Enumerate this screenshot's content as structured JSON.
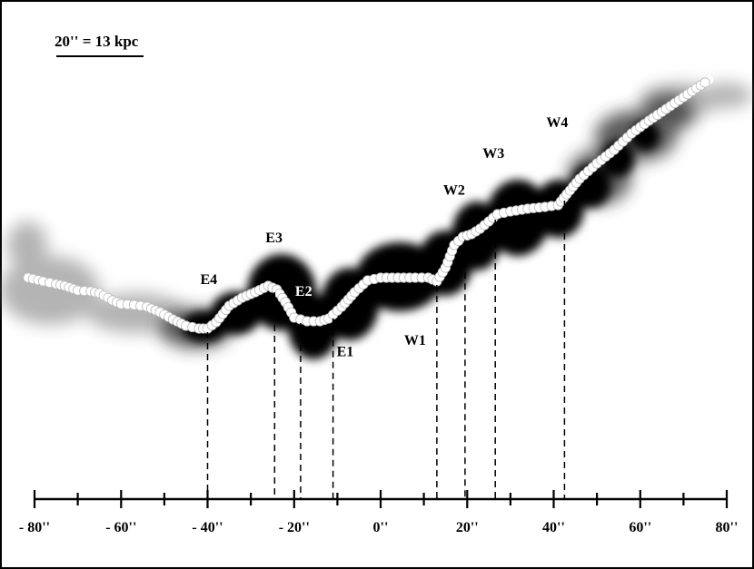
{
  "scale_bar": {
    "label": "20'' = 13 kpc"
  },
  "axis": {
    "min": -80,
    "max": 80,
    "major_step": 20,
    "minor_step": 10,
    "tick_labels": [
      {
        "value": -80,
        "text": "- 80''"
      },
      {
        "value": -60,
        "text": "- 60''"
      },
      {
        "value": -40,
        "text": "- 40''"
      },
      {
        "value": -20,
        "text": "- 20''"
      },
      {
        "value": 0,
        "text": "0''"
      },
      {
        "value": 20,
        "text": "20''"
      },
      {
        "value": 40,
        "text": "40''"
      },
      {
        "value": 60,
        "text": "60''"
      },
      {
        "value": 80,
        "text": "80''"
      }
    ]
  },
  "knots": [
    {
      "id": "E4",
      "label": "E4",
      "x": -40,
      "text_color": "black"
    },
    {
      "id": "E3",
      "label": "E3",
      "x": -24.5,
      "text_color": "black"
    },
    {
      "id": "E2",
      "label": "E2",
      "x": -18.5,
      "text_color": "white"
    },
    {
      "id": "E1",
      "label": "E1",
      "x": -11,
      "text_color": "black"
    },
    {
      "id": "W1",
      "label": "W1",
      "x": 13,
      "text_color": "black"
    },
    {
      "id": "W2",
      "label": "W2",
      "x": 19.5,
      "text_color": "black"
    },
    {
      "id": "W3",
      "label": "W3",
      "x": 26.5,
      "text_color": "black"
    },
    {
      "id": "W4",
      "label": "W4",
      "x": 42.5,
      "text_color": "black"
    }
  ],
  "ridge": [
    [
      -81.5,
      -1.2
    ],
    [
      -78,
      -2.0
    ],
    [
      -75,
      -2.6
    ],
    [
      -73,
      -3.0
    ],
    [
      -70,
      -4.0
    ],
    [
      -67,
      -4.2
    ],
    [
      -65,
      -4.6
    ],
    [
      -62,
      -6.2
    ],
    [
      -60,
      -7.0
    ],
    [
      -57,
      -7.2
    ],
    [
      -54,
      -7.6
    ],
    [
      -51,
      -8.8
    ],
    [
      -48,
      -10.4
    ],
    [
      -45,
      -11.8
    ],
    [
      -42,
      -12.4
    ],
    [
      -40,
      -12.4
    ],
    [
      -38,
      -11.0
    ],
    [
      -35,
      -7.4
    ],
    [
      -32,
      -5.6
    ],
    [
      -29,
      -4.4
    ],
    [
      -26,
      -3.0
    ],
    [
      -24,
      -3.8
    ],
    [
      -22,
      -6.6
    ],
    [
      -20,
      -10.0
    ],
    [
      -17,
      -10.8
    ],
    [
      -14,
      -10.8
    ],
    [
      -12,
      -10.2
    ],
    [
      -9,
      -7.6
    ],
    [
      -6,
      -4.4
    ],
    [
      -3,
      -1.8
    ],
    [
      0,
      -1.2
    ],
    [
      4,
      -1.2
    ],
    [
      8,
      -1.2
    ],
    [
      11,
      -1.2
    ],
    [
      13,
      -2.0
    ],
    [
      15,
      1.0
    ],
    [
      17,
      6.0
    ],
    [
      19,
      7.8
    ],
    [
      21,
      8.4
    ],
    [
      23,
      9.6
    ],
    [
      25,
      11.2
    ],
    [
      27,
      12.8
    ],
    [
      30,
      13.4
    ],
    [
      34,
      14.0
    ],
    [
      38,
      14.4
    ],
    [
      41,
      14.8
    ],
    [
      43,
      17.2
    ],
    [
      46,
      20.6
    ],
    [
      50,
      24.0
    ],
    [
      54,
      27.0
    ],
    [
      58,
      30.6
    ],
    [
      62,
      33.4
    ],
    [
      66,
      36.0
    ],
    [
      70,
      38.6
    ],
    [
      73,
      40.6
    ],
    [
      76,
      42.4
    ]
  ]
}
